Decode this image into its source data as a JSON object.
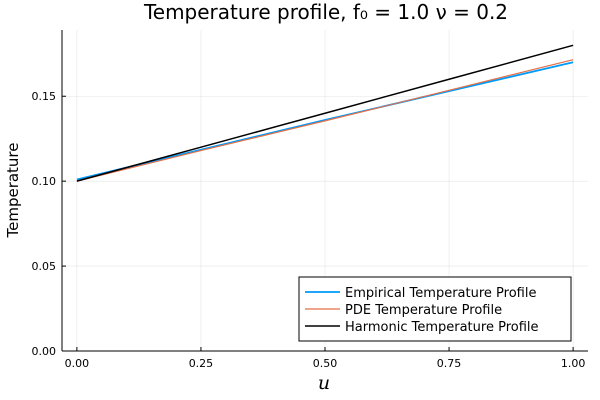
{
  "chart_data": {
    "type": "line",
    "title": "Temperature profile, f₀ = 1.0 ν = 0.2",
    "xlabel": "u",
    "ylabel": "Temperature",
    "xlim": [
      -0.03,
      1.03
    ],
    "ylim": [
      0.0,
      0.189
    ],
    "xticks": [
      0.0,
      0.25,
      0.5,
      0.75,
      1.0
    ],
    "xtick_labels": [
      "0.00",
      "0.25",
      "0.50",
      "0.75",
      "1.00"
    ],
    "yticks": [
      0.0,
      0.05,
      0.1,
      0.15
    ],
    "ytick_labels": [
      "0.00",
      "0.05",
      "0.10",
      "0.15"
    ],
    "grid": true,
    "legend_position": "bottom-right",
    "series": [
      {
        "name": "Empirical Temperature Profile",
        "color": "#009AFA",
        "x": [
          0.0,
          0.25,
          0.5,
          0.75,
          1.0
        ],
        "y": [
          0.101,
          0.1185,
          0.136,
          0.153,
          0.17
        ]
      },
      {
        "name": "PDE Temperature Profile",
        "color": "#E36F47",
        "x": [
          0.0,
          0.25,
          0.5,
          0.75,
          1.0
        ],
        "y": [
          0.1,
          0.118,
          0.1355,
          0.1535,
          0.1715
        ]
      },
      {
        "name": "Harmonic Temperature Profile",
        "color": "#000000",
        "x": [
          0.0,
          0.25,
          0.5,
          0.75,
          1.0
        ],
        "y": [
          0.1,
          0.12,
          0.14,
          0.16,
          0.18
        ]
      }
    ]
  }
}
